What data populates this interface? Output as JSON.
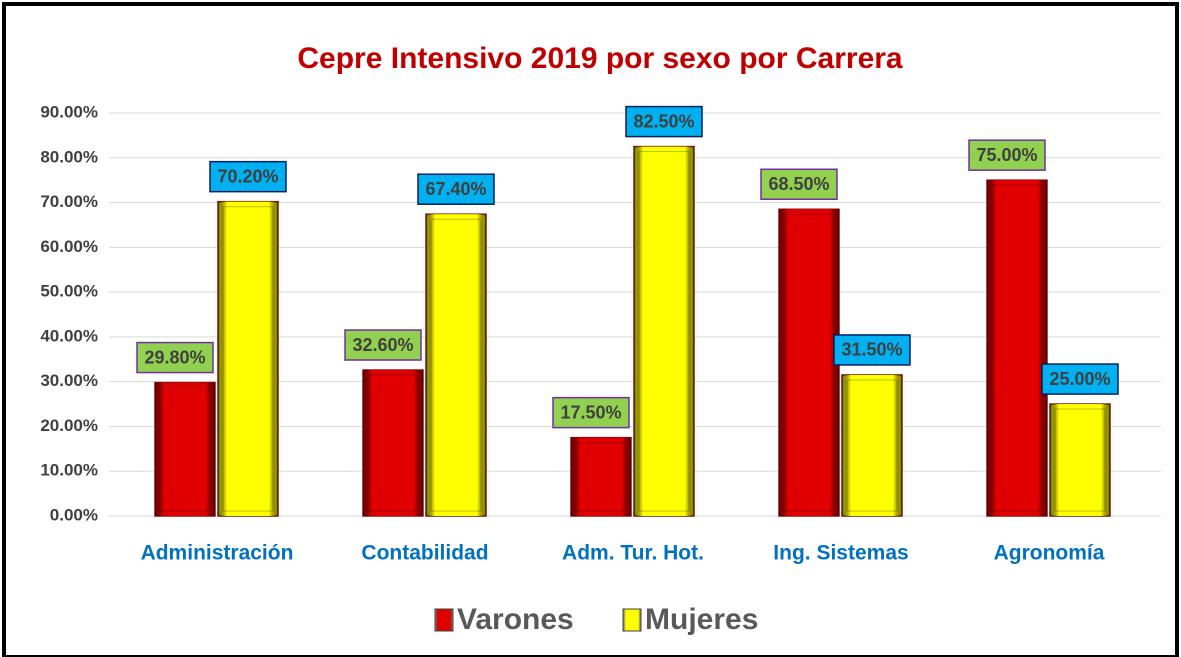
{
  "chart_data": {
    "type": "bar",
    "title": "Cepre Intensivo 2019 por sexo por Carrera",
    "categories": [
      "Administración",
      "Contabilidad",
      "Adm. Tur. Hot.",
      "Ing. Sistemas",
      "Agronomía"
    ],
    "series": [
      {
        "name": "Varones",
        "color": "#e00000",
        "label_color": "#92d050",
        "values": [
          29.8,
          32.6,
          17.5,
          68.5,
          75.0
        ],
        "value_labels": [
          "29.80%",
          "32.60%",
          "17.50%",
          "68.50%",
          "75.00%"
        ]
      },
      {
        "name": "Mujeres",
        "color": "#ffff00",
        "label_color": "#00b0f0",
        "values": [
          70.2,
          67.4,
          82.5,
          31.5,
          25.0
        ],
        "value_labels": [
          "70.20%",
          "67.40%",
          "82.50%",
          "31.50%",
          "25.00%"
        ]
      }
    ],
    "ylim": [
      0,
      90
    ],
    "yticks": [
      {
        "value": 0,
        "label": "0.00%"
      },
      {
        "value": 10,
        "label": "10.00%"
      },
      {
        "value": 20,
        "label": "20.00%"
      },
      {
        "value": 30,
        "label": "30.00%"
      },
      {
        "value": 40,
        "label": "40.00%"
      },
      {
        "value": 50,
        "label": "50.00%"
      },
      {
        "value": 60,
        "label": "60.00%"
      },
      {
        "value": 70,
        "label": "70.00%"
      },
      {
        "value": 80,
        "label": "80.00%"
      },
      {
        "value": 90,
        "label": "90.00%"
      }
    ],
    "grid": true
  }
}
